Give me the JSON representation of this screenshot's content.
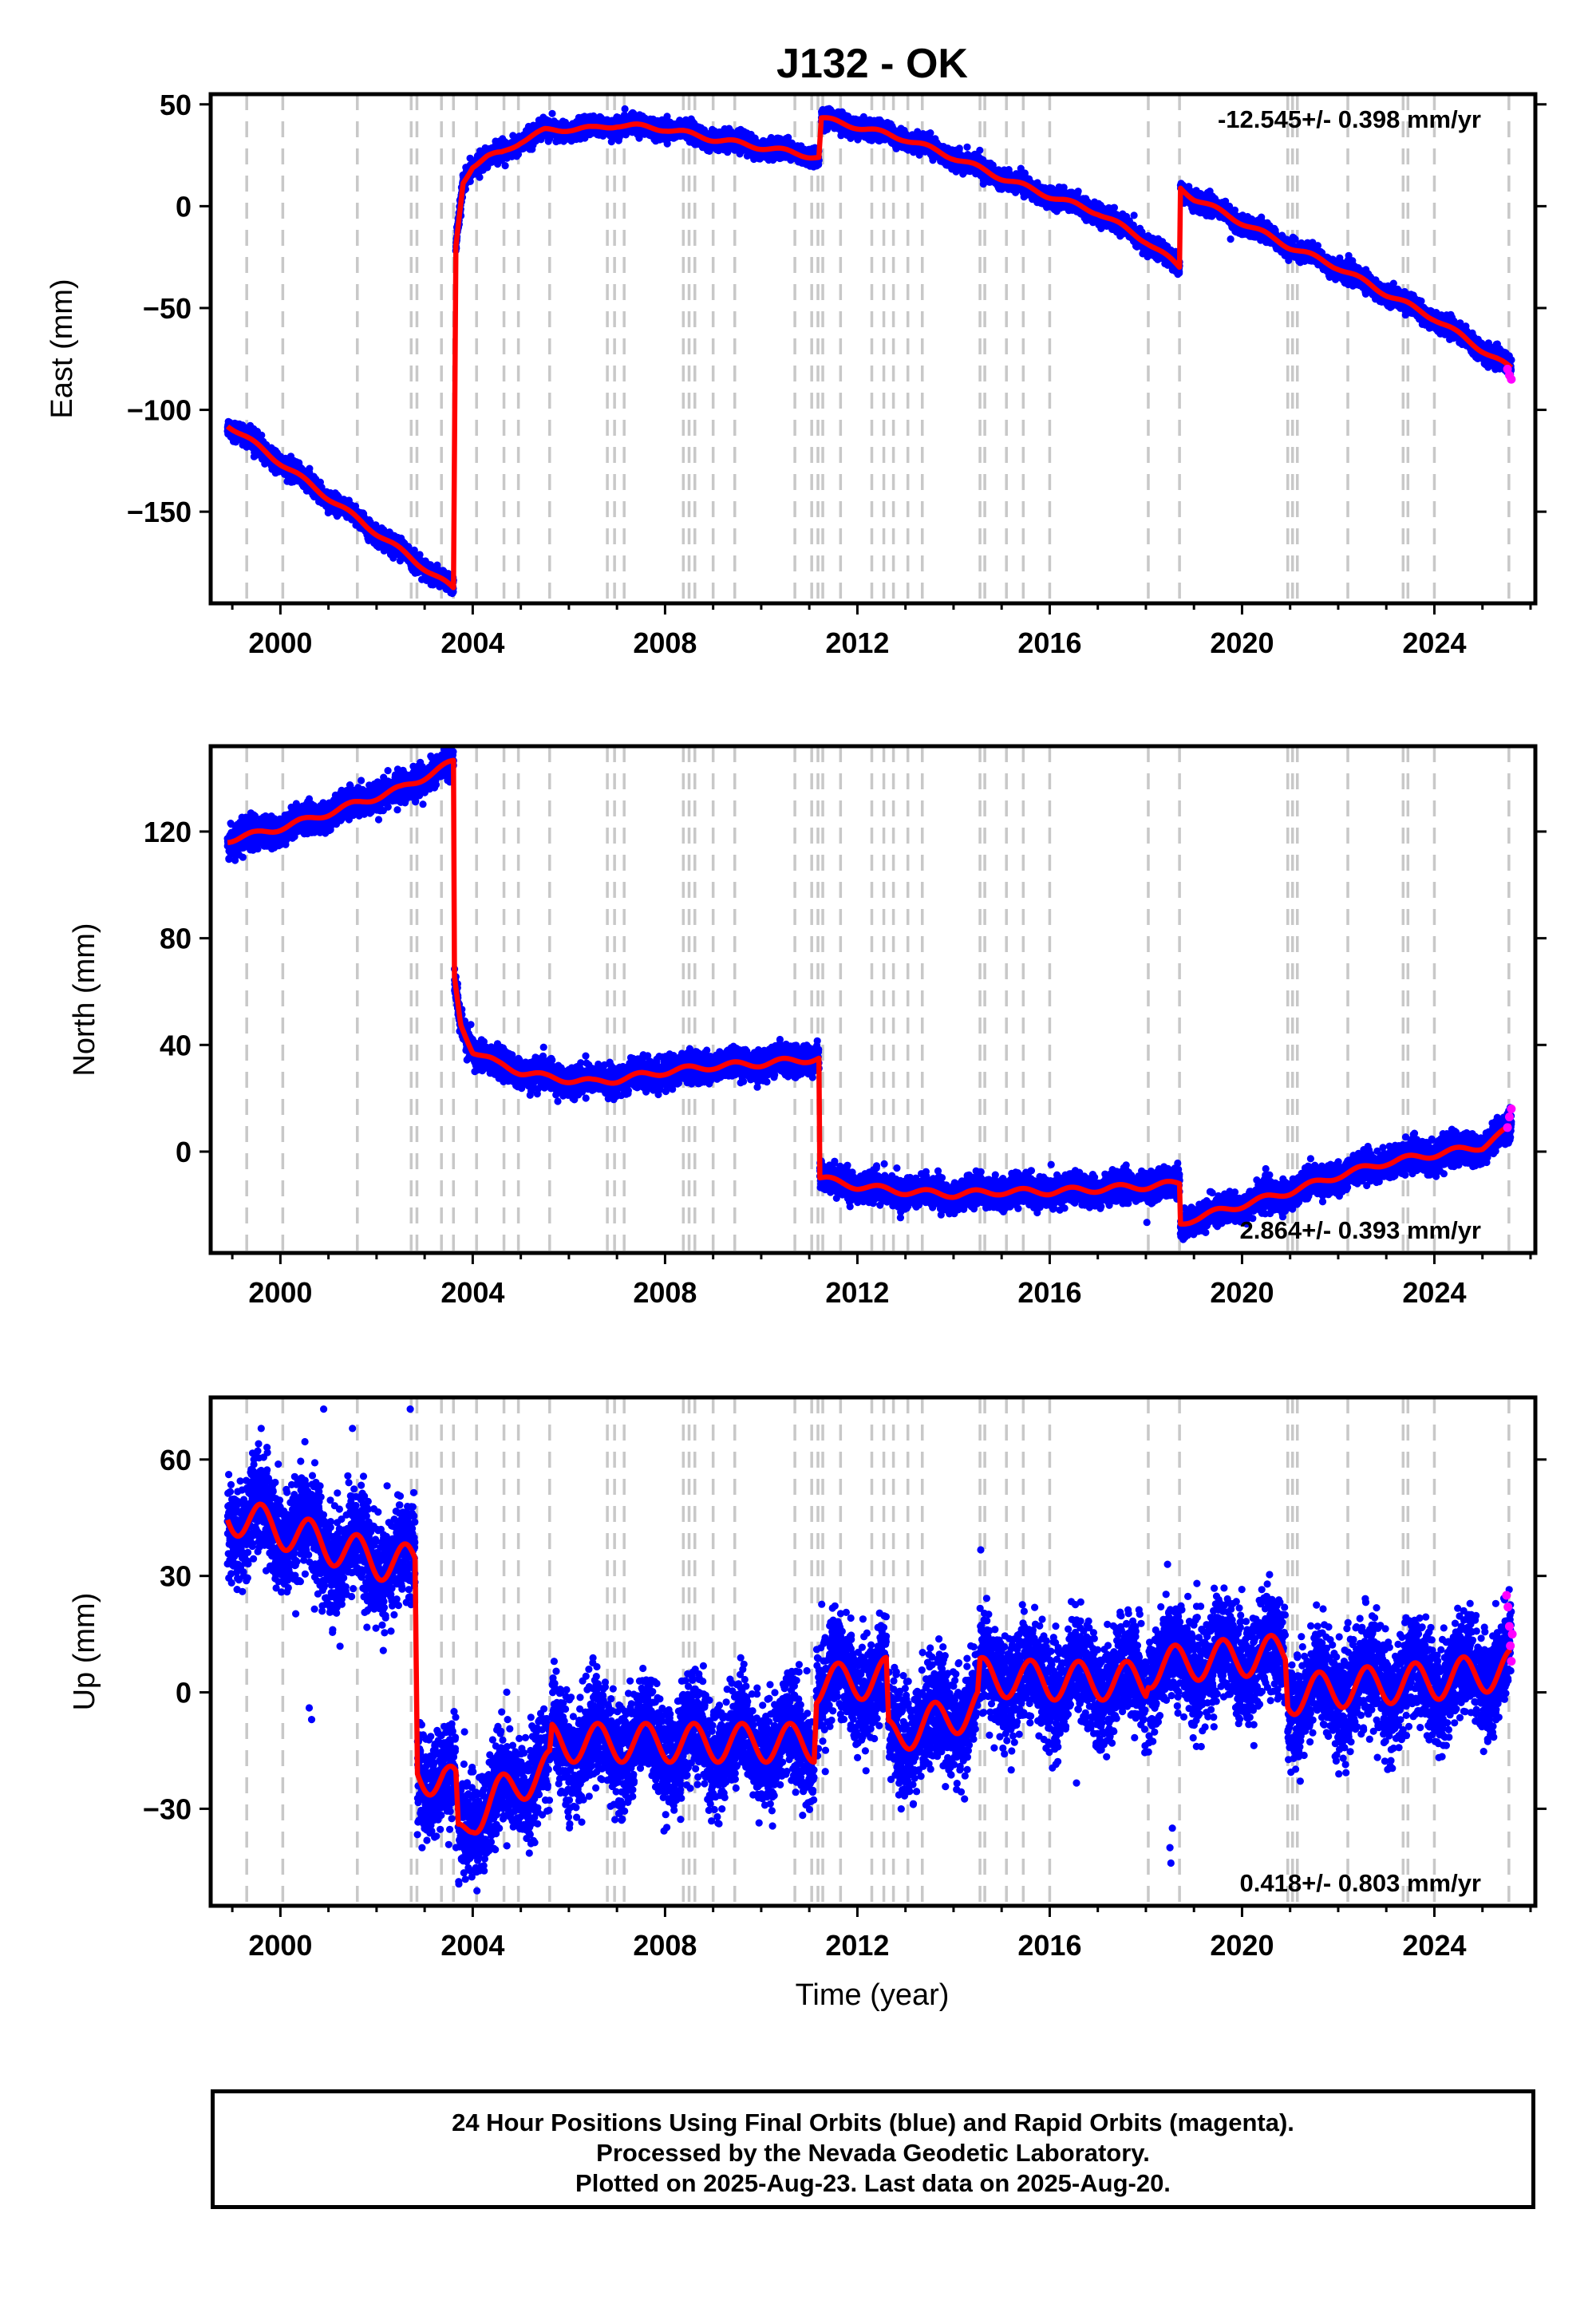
{
  "chart_data": {
    "title": "J132 - OK",
    "xlabel": "Time (year)",
    "xlim": [
      1998.55,
      2026.1
    ],
    "xticks": [
      2000,
      2004,
      2008,
      2012,
      2016,
      2020,
      2024
    ],
    "xtick_labels": [
      "2000",
      "2004",
      "2008",
      "2012",
      "2016",
      "2020",
      "2024"
    ],
    "event_lines": [
      1999.3,
      2000.05,
      2001.6,
      2002.72,
      2002.84,
      2003.35,
      2003.6,
      2004.08,
      2004.65,
      2004.95,
      2005.6,
      2006.8,
      2006.95,
      2007.15,
      2008.38,
      2008.5,
      2008.62,
      2009.0,
      2009.45,
      2010.7,
      2011.05,
      2011.18,
      2011.28,
      2011.65,
      2012.3,
      2012.55,
      2012.75,
      2013.05,
      2013.35,
      2014.55,
      2014.65,
      2015.1,
      2015.45,
      2016.0,
      2018.05,
      2018.7,
      2020.95,
      2021.05,
      2021.15,
      2022.2,
      2023.35,
      2023.45,
      2024.0,
      2025.55
    ],
    "legend_note": "24 Hour Positions Using Final Orbits (blue) and Rapid Orbits (magenta).",
    "panels": [
      {
        "component": "East",
        "ylabel": "East (mm)",
        "ylim": [
          -195,
          55
        ],
        "yticks": [
          50,
          0,
          -50,
          -100,
          -150
        ],
        "ytick_labels": [
          "50",
          "0",
          "−50",
          "−100",
          "−150"
        ],
        "rate_text": "-12.545+/- 0.398 mm/yr",
        "rate_position": "top-right",
        "noise_mm": 2.2,
        "model_segments": [
          {
            "t": [
              1998.9,
              2003.6
            ],
            "y": [
              -107,
              -188
            ]
          },
          {
            "t": [
              2003.65,
              2003.8,
              2004.0,
              2004.3,
              2004.6,
              2005.0,
              2005.5,
              2006.0,
              2006.5,
              2007.0,
              2008.0,
              2009.0,
              2010.0,
              2011.2
            ],
            "y": [
              -20,
              12,
              20,
              24,
              26,
              32,
              37,
              38,
              38,
              40,
              38,
              33,
              29,
              24
            ]
          },
          {
            "t": [
              2011.25,
              2012.0,
              2013.0,
              2014.0,
              2015.0,
              2016.0,
              2017.0,
              2018.0,
              2018.7
            ],
            "y": [
              43,
              39,
              33,
              24,
              14,
              5,
              -3,
              -17,
              -30
            ]
          },
          {
            "t": [
              2018.72,
              2019.0,
              2020.0,
              2021.0,
              2022.0,
              2023.0,
              2024.0,
              2025.6
            ],
            "y": [
              9,
              4,
              -8,
              -20,
              -30,
              -43,
              -55,
              -80
            ]
          }
        ],
        "rapid_points": [
          [
            2025.52,
            -80
          ],
          [
            2025.56,
            -83
          ],
          [
            2025.6,
            -85
          ]
        ]
      },
      {
        "component": "North",
        "ylabel": "North (mm)",
        "ylim": [
          -38,
          152
        ],
        "yticks": [
          120,
          80,
          40,
          0
        ],
        "ytick_labels": [
          "120",
          "80",
          "40",
          "0"
        ],
        "rate_text": "2.864+/- 0.393 mm/yr",
        "rate_position": "bottom-right",
        "noise_mm": 2.6,
        "model_segments": [
          {
            "t": [
              1998.9,
              1999.5,
              2000.5,
              2001.5,
              2002.5,
              2003.6
            ],
            "y": [
              117,
              119,
              124,
              130,
              136,
              146
            ]
          },
          {
            "t": [
              2003.62,
              2003.75,
              2004.0,
              2004.5,
              2005.0,
              2005.5,
              2006.0,
              2006.5,
              2007.0,
              2008.0,
              2009.0,
              2010.0,
              2011.2
            ],
            "y": [
              65,
              48,
              38,
              33,
              30,
              28,
              27,
              26,
              27,
              30,
              32,
              33,
              35
            ]
          },
          {
            "t": [
              2011.22,
              2012.0,
              2013.0,
              2014.0,
              2015.0,
              2016.0,
              2017.0,
              2018.0,
              2018.7
            ],
            "y": [
              -10,
              -13,
              -15,
              -16,
              -15,
              -15,
              -14,
              -13,
              -12
            ]
          },
          {
            "t": [
              2018.72,
              2019.0,
              2020.0,
              2021.0,
              2022.0,
              2023.0,
              2024.0,
              2025.0,
              2025.6
            ],
            "y": [
              -27,
              -25,
              -20,
              -15,
              -9,
              -4,
              -1,
              2,
              9
            ]
          }
        ],
        "rapid_points": [
          [
            2025.52,
            9
          ],
          [
            2025.56,
            13
          ],
          [
            2025.6,
            16
          ]
        ]
      },
      {
        "component": "Up",
        "ylabel": "Up (mm)",
        "ylim": [
          -55,
          76
        ],
        "yticks": [
          60,
          30,
          0,
          -30
        ],
        "ytick_labels": [
          "60",
          "30",
          "0",
          "−30"
        ],
        "rate_text": "0.418+/- 0.803 mm/yr",
        "rate_position": "bottom-right",
        "noise_mm": 6.5,
        "seasonal_amp_mm": 5,
        "model_segments": [
          {
            "t": [
              1998.9,
              2000.0,
              2001.0,
              2002.0,
              2002.8
            ],
            "y": [
              46,
              42,
              38,
              34,
              33
            ]
          },
          {
            "t": [
              2002.85,
              2003.4,
              2003.65
            ],
            "y": [
              -21,
              -22,
              -25
            ]
          },
          {
            "t": [
              2003.7,
              2004.0,
              2004.5,
              2005.0,
              2005.6
            ],
            "y": [
              -38,
              -32,
              -27,
              -23,
              -20
            ]
          },
          {
            "t": [
              2005.65,
              2007.0,
              2008.0,
              2009.0,
              2010.0,
              2011.1
            ],
            "y": [
              -13,
              -13,
              -13,
              -13,
              -13,
              -13
            ]
          },
          {
            "t": [
              2011.15,
              2012.0,
              2012.6
            ],
            "y": [
              2,
              3,
              4
            ]
          },
          {
            "t": [
              2012.65,
              2013.0,
              2014.0,
              2014.5
            ],
            "y": [
              -12,
              -10,
              -6,
              -4
            ]
          },
          {
            "t": [
              2014.55,
              2016.0,
              2018.0
            ],
            "y": [
              4,
              3,
              3
            ]
          },
          {
            "t": [
              2018.05,
              2019.0,
              2020.0,
              2020.9
            ],
            "y": [
              6,
              8,
              9,
              10
            ]
          },
          {
            "t": [
              2020.95,
              2022.0,
              2023.0,
              2024.0,
              2025.6
            ],
            "y": [
              -1,
              1,
              2,
              3,
              6
            ]
          }
        ],
        "outliers": [
          [
            1999.6,
            68
          ],
          [
            2000.9,
            73
          ],
          [
            2001.5,
            68
          ],
          [
            2002.7,
            73
          ],
          [
            2000.6,
            -4
          ],
          [
            2000.65,
            -7
          ],
          [
            2013.9,
            -20
          ],
          [
            2015.2,
            -20
          ],
          [
            2018.5,
            -40
          ],
          [
            2018.52,
            -44
          ],
          [
            2018.55,
            -35
          ],
          [
            2018.45,
            33
          ]
        ],
        "rapid_points": [
          [
            2025.5,
            25
          ],
          [
            2025.53,
            22
          ],
          [
            2025.56,
            17
          ],
          [
            2025.58,
            12
          ],
          [
            2025.6,
            8
          ],
          [
            2025.62,
            15
          ]
        ]
      }
    ]
  },
  "footer": {
    "line1": "24 Hour Positions Using Final Orbits (blue) and Rapid Orbits (magenta).",
    "line2": "Processed by the Nevada Geodetic Laboratory.",
    "line3": "Plotted on 2025-Aug-23. Last data on 2025-Aug-20."
  },
  "colors": {
    "data": "#0000ff",
    "model": "#ff0000",
    "rapid": "#ff00ff",
    "event_line": "#c8c8c8",
    "frame": "#000000"
  }
}
